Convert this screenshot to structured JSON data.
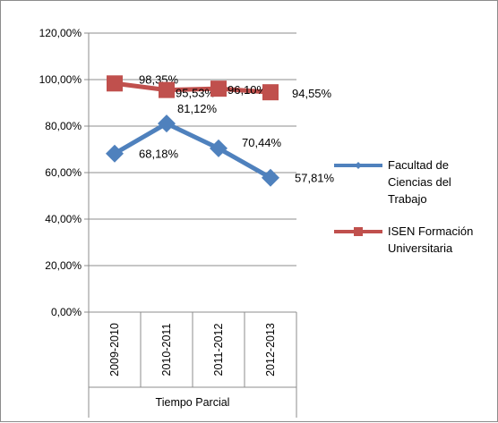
{
  "chart_data": {
    "type": "line",
    "categories": [
      "2009-2010",
      "2010-2011",
      "2011-2012",
      "2012-2013"
    ],
    "category_group": "Tiempo Parcial",
    "ylim": [
      0,
      120
    ],
    "ytick_step": 20,
    "y_ticks": [
      "0,00%",
      "20,00%",
      "40,00%",
      "60,00%",
      "80,00%",
      "100,00%",
      "120,00%"
    ],
    "grid": true,
    "legend_position": "right",
    "series": [
      {
        "name_lines": [
          "Facultad de",
          "Ciencias del",
          "Trabajo"
        ],
        "values": [
          68.18,
          81.12,
          70.44,
          57.81
        ],
        "labels": [
          "68,18%",
          "81,12%",
          "70,44%",
          "57,81%"
        ],
        "color": "#4f81bd",
        "marker": "diamond"
      },
      {
        "name_lines": [
          "ISEN Formación",
          "Universitaria"
        ],
        "values": [
          98.35,
          95.53,
          96.1,
          94.55
        ],
        "labels": [
          "98,35%",
          "95,53%",
          "96,10%",
          "94,55%"
        ],
        "color": "#c0504d",
        "marker": "square"
      }
    ]
  }
}
